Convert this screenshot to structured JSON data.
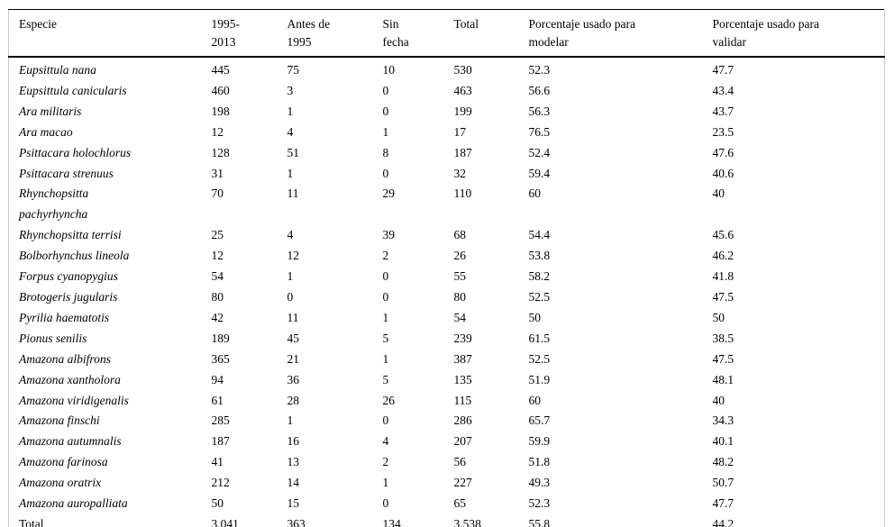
{
  "table": {
    "columns": [
      {
        "label": "Especie"
      },
      {
        "label": "1995-\n2013"
      },
      {
        "label": "Antes de\n1995"
      },
      {
        "label": "Sin\nfecha"
      },
      {
        "label": "Total"
      },
      {
        "label": "Porcentaje usado para\nmodelar"
      },
      {
        "label": "Porcentaje usado para\nvalidar"
      }
    ],
    "rows": [
      {
        "especie": "Eupsittula nana",
        "italic": true,
        "values": [
          "445",
          "75",
          "10",
          "530",
          "52.3",
          "47.7"
        ]
      },
      {
        "especie": "Eupsittula canicularis",
        "italic": true,
        "values": [
          "460",
          "3",
          "0",
          "463",
          "56.6",
          "43.4"
        ]
      },
      {
        "especie": "Ara militaris",
        "italic": true,
        "values": [
          "198",
          "1",
          "0",
          "199",
          "56.3",
          "43.7"
        ]
      },
      {
        "especie": "Ara macao",
        "italic": true,
        "values": [
          "12",
          "4",
          "1",
          "17",
          "76.5",
          "23.5"
        ]
      },
      {
        "especie": "Psittacara holochlorus",
        "italic": true,
        "values": [
          "128",
          "51",
          "8",
          "187",
          "52.4",
          "47.6"
        ]
      },
      {
        "especie": "Psittacara strenuus",
        "italic": true,
        "values": [
          "31",
          "1",
          "0",
          "32",
          "59.4",
          "40.6"
        ]
      },
      {
        "especie": "Rhynchopsitta\npachyrhyncha",
        "italic": true,
        "values": [
          "70",
          "11",
          "29",
          "110",
          "60",
          "40"
        ]
      },
      {
        "especie": "Rhynchopsitta terrisi",
        "italic": true,
        "values": [
          "25",
          "4",
          "39",
          "68",
          "54.4",
          "45.6"
        ]
      },
      {
        "especie": "Bolborhynchus lineola",
        "italic": true,
        "values": [
          "12",
          "12",
          "2",
          "26",
          "53.8",
          "46.2"
        ]
      },
      {
        "especie": "Forpus cyanopygius",
        "italic": true,
        "values": [
          "54",
          "1",
          "0",
          "55",
          "58.2",
          "41.8"
        ]
      },
      {
        "especie": "Brotogeris jugularis",
        "italic": true,
        "values": [
          "80",
          "0",
          "0",
          "80",
          "52.5",
          "47.5"
        ]
      },
      {
        "especie": "Pyrilia haematotis",
        "italic": true,
        "values": [
          "42",
          "11",
          "1",
          "54",
          "50",
          "50"
        ]
      },
      {
        "especie": "Pionus senilis",
        "italic": true,
        "values": [
          "189",
          "45",
          "5",
          "239",
          "61.5",
          "38.5"
        ]
      },
      {
        "especie": "Amazona albifrons",
        "italic": true,
        "values": [
          "365",
          "21",
          "1",
          "387",
          "52.5",
          "47.5"
        ]
      },
      {
        "especie": "Amazona xantholora",
        "italic": true,
        "values": [
          "94",
          "36",
          "5",
          "135",
          "51.9",
          "48.1"
        ]
      },
      {
        "especie": "Amazona viridigenalis",
        "italic": true,
        "values": [
          "61",
          "28",
          "26",
          "115",
          "60",
          "40"
        ]
      },
      {
        "especie": "Amazona finschi",
        "italic": true,
        "values": [
          "285",
          "1",
          "0",
          "286",
          "65.7",
          "34.3"
        ]
      },
      {
        "especie": "Amazona autumnalis",
        "italic": true,
        "values": [
          "187",
          "16",
          "4",
          "207",
          "59.9",
          "40.1"
        ]
      },
      {
        "especie": "Amazona farinosa",
        "italic": true,
        "values": [
          "41",
          "13",
          "2",
          "56",
          "51.8",
          "48.2"
        ]
      },
      {
        "especie": "Amazona oratrix",
        "italic": true,
        "values": [
          "212",
          "14",
          "1",
          "227",
          "49.3",
          "50.7"
        ]
      },
      {
        "especie": "Amazona auropalliata",
        "italic": true,
        "values": [
          "50",
          "15",
          "0",
          "65",
          "52.3",
          "47.7"
        ]
      },
      {
        "especie": "Total",
        "italic": false,
        "values": [
          "3,041",
          "363",
          "134",
          "3,538",
          "55.8",
          "44.2"
        ]
      }
    ]
  }
}
